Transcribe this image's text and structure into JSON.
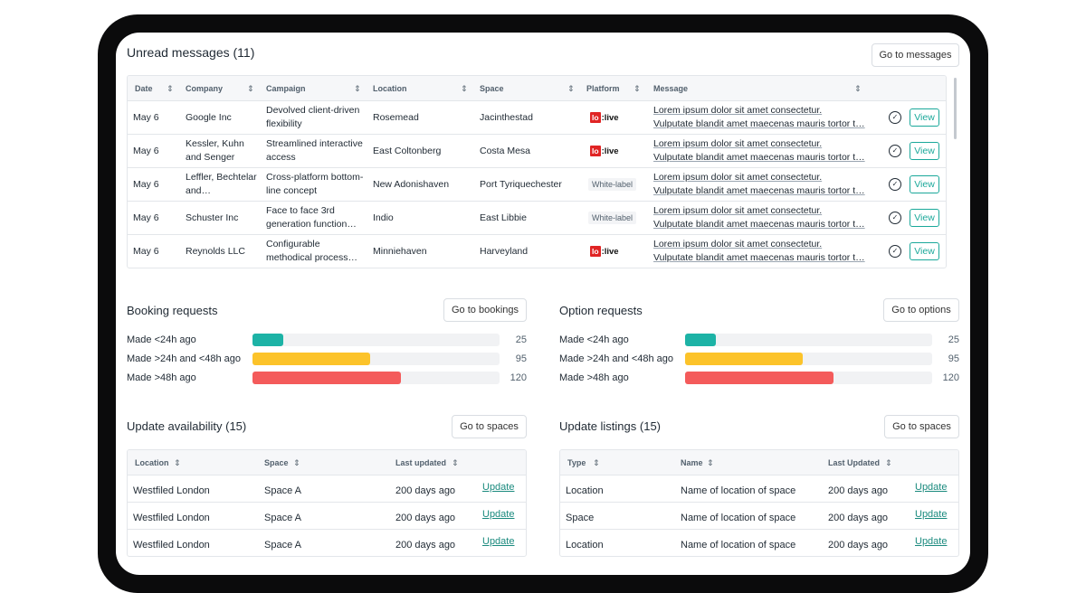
{
  "unread": {
    "title": "Unread messages (11)",
    "go_button": "Go to messages",
    "columns": [
      "Date",
      "Company",
      "Campaign",
      "Location",
      "Space",
      "Platform",
      "Message"
    ],
    "view_label": "View",
    "rows": [
      {
        "date": "May 6",
        "company": "Google Inc",
        "campaign": "Devolved client-driven flexibility",
        "location": "Rosemead",
        "space": "Jacinthestad",
        "platform": "lo:live",
        "msg1": "Lorem ipsum dolor sit amet consectetur.",
        "msg2": "Vulputate blandit amet maecenas mauris tortor t…"
      },
      {
        "date": "May 6",
        "company": "Kessler, Kuhn and Senger",
        "campaign": "Streamlined interactive access",
        "location": "East Coltonberg",
        "space": "Costa Mesa",
        "platform": "lo:live",
        "msg1": "Lorem ipsum dolor sit amet consectetur.",
        "msg2": "Vulputate blandit amet maecenas mauris tortor t…"
      },
      {
        "date": "May 6",
        "company": "Leffler, Bechtelar and…",
        "campaign": "Cross-platform bottom-line concept",
        "location": "New Adonishaven",
        "space": "Port Tyriquechester",
        "platform": "White-label",
        "msg1": "Lorem ipsum dolor sit amet consectetur.",
        "msg2": "Vulputate blandit amet maecenas mauris tortor t…"
      },
      {
        "date": "May 6",
        "company": "Schuster Inc",
        "campaign": "Face to face 3rd generation function…",
        "location": "Indio",
        "space": "East Libbie",
        "platform": "White-label",
        "msg1": "Lorem ipsum dolor sit amet consectetur.",
        "msg2": "Vulputate blandit amet maecenas mauris tortor t…"
      },
      {
        "date": "May 6",
        "company": "Reynolds LLC",
        "campaign": "Configurable methodical process…",
        "location": "Minniehaven",
        "space": "Harveyland",
        "platform": "lo:live",
        "msg1": "Lorem ipsum dolor sit amet consectetur.",
        "msg2": "Vulputate blandit amet maecenas mauris tortor t…"
      }
    ]
  },
  "booking": {
    "title": "Booking requests",
    "go_button": "Go to bookings",
    "max": 200,
    "bars": [
      {
        "label": "Made <24h ago",
        "value": 25,
        "display": "25",
        "color": "#1db3a6"
      },
      {
        "label": "Made >24h and <48h ago",
        "value": 95,
        "display": "95",
        "color": "#fcc32a"
      },
      {
        "label": "Made >48h ago",
        "value": 120,
        "display": "120",
        "color": "#f45b5b"
      }
    ]
  },
  "option": {
    "title": "Option requests",
    "go_button": "Go to options",
    "max": 200,
    "bars": [
      {
        "label": "Made <24h ago",
        "value": 25,
        "display": "25",
        "color": "#1db3a6"
      },
      {
        "label": "Made >24h and <48h ago",
        "value": 95,
        "display": "95",
        "color": "#fcc32a"
      },
      {
        "label": "Made >48h ago",
        "value": 120,
        "display": "120",
        "color": "#f45b5b"
      }
    ]
  },
  "availability": {
    "title": "Update availability (15)",
    "go_button": "Go to spaces",
    "columns": [
      "Location",
      "Space",
      "Last updated"
    ],
    "update_label": "Update",
    "rows": [
      {
        "a": "Westfiled London",
        "b": "Space A",
        "c": "200 days ago"
      },
      {
        "a": "Westfiled London",
        "b": "Space A",
        "c": "200 days ago"
      },
      {
        "a": "Westfiled London",
        "b": "Space A",
        "c": "200 days ago"
      }
    ]
  },
  "listings": {
    "title": "Update listings (15)",
    "go_button": "Go to spaces",
    "columns": [
      "Type",
      "Name",
      "Last Updated"
    ],
    "update_label": "Update",
    "rows": [
      {
        "a": "Location",
        "b": "Name of location of space",
        "c": "200 days ago"
      },
      {
        "a": "Space",
        "b": "Name of location of space",
        "c": "200 days ago"
      },
      {
        "a": "Location",
        "b": "Name of location of space",
        "c": "200 days ago"
      }
    ]
  }
}
